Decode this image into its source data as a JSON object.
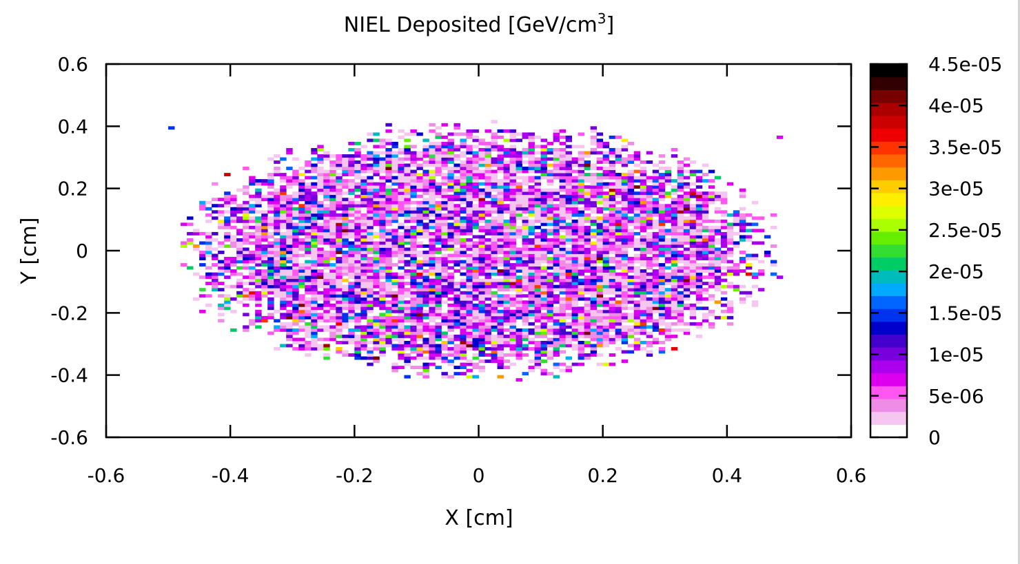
{
  "chart_data": {
    "type": "heatmap",
    "title_main": "NIEL Deposited [GeV/cm",
    "title_sup": "3",
    "title_end": "]",
    "xlabel": "X [cm]",
    "ylabel": "Y [cm]",
    "xlim": [
      -0.6,
      0.6
    ],
    "ylim": [
      -0.6,
      0.6
    ],
    "x_ticks": [
      -0.6,
      -0.4,
      -0.2,
      0,
      0.2,
      0.4,
      0.6
    ],
    "x_tick_labels": [
      "-0.6",
      "-0.4",
      "-0.2",
      "0",
      "0.2",
      "0.4",
      "0.6"
    ],
    "y_ticks": [
      -0.6,
      -0.4,
      -0.2,
      0,
      0.2,
      0.4,
      0.6
    ],
    "y_tick_labels": [
      "-0.6",
      "-0.4",
      "-0.2",
      "0",
      "0.2",
      "0.4",
      "0.6"
    ],
    "grid": false,
    "bin_width_cm": 0.01,
    "distribution": {
      "shape": "ellipse",
      "center": [
        0.0,
        0.0
      ],
      "semi_axis_x": 0.45,
      "semi_axis_y": 0.38,
      "typical_value": 8e-06,
      "max_value": 4.3e-05
    },
    "outliers": [
      {
        "x": -0.495,
        "y": 0.395,
        "value": 1.5e-05
      },
      {
        "x": 0.485,
        "y": 0.365,
        "value": 7e-06
      }
    ],
    "colorbar": {
      "min": 0,
      "max": 4.5e-05,
      "ticks": [
        0,
        5e-06,
        1e-05,
        1.5e-05,
        2e-05,
        2.5e-05,
        3e-05,
        3.5e-05,
        4e-05,
        4.5e-05
      ],
      "tick_labels": [
        "0",
        "5e-06",
        "1e-05",
        "1.5e-05",
        "2e-05",
        "2.5e-05",
        "3e-05",
        "3.5e-05",
        "4e-05",
        "4.5e-05"
      ],
      "levels": [
        "#ffffff",
        "#f5c6f0",
        "#ef8ce6",
        "#ff55f2",
        "#dd00ee",
        "#aa00ee",
        "#7700dd",
        "#4400cc",
        "#0000cc",
        "#0033ee",
        "#0066ff",
        "#00aaff",
        "#00bbbb",
        "#00cc66",
        "#33dd33",
        "#66ee00",
        "#aaff00",
        "#ddff00",
        "#ffee00",
        "#ffcc00",
        "#ff9900",
        "#ff6600",
        "#ff3300",
        "#ee0000",
        "#cc0000",
        "#aa0000",
        "#770000",
        "#330000",
        "#000000"
      ]
    }
  }
}
